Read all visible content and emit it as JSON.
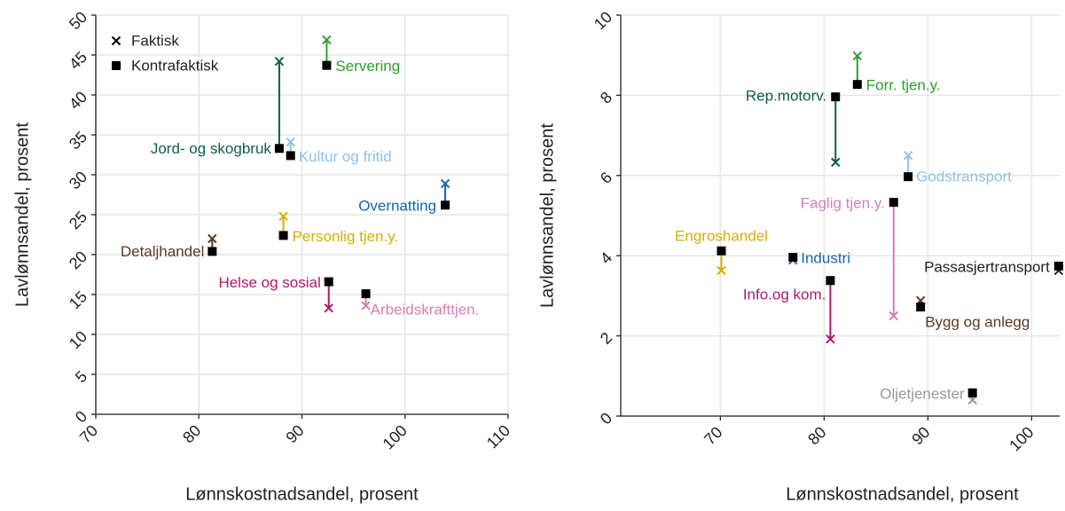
{
  "chart_data": [
    {
      "type": "scatter",
      "x_label": "Lønnskostnadsandel, prosent",
      "y_label": "Lavlønnsandel, prosent",
      "xlim": [
        70,
        110
      ],
      "ylim": [
        0,
        50
      ],
      "xticks": [
        70,
        80,
        90,
        100,
        110
      ],
      "yticks": [
        0,
        5,
        10,
        15,
        20,
        25,
        30,
        35,
        40,
        45,
        50
      ],
      "grid": true,
      "legend": [
        "Faktisk",
        "Kontrafaktisk"
      ],
      "points": [
        {
          "label": "Servering",
          "color": "#2ca02c",
          "x": 92.4,
          "faktisk": 46.9,
          "kontrafaktisk": 43.7
        },
        {
          "label": "Jord- og skogbruk",
          "color": "#0d5e4c",
          "x": 87.8,
          "faktisk": 44.2,
          "kontrafaktisk": 33.3
        },
        {
          "label": "Kultur og fritid",
          "color": "#8fc1e8",
          "x": 88.9,
          "faktisk": 34.1,
          "kontrafaktisk": 32.4
        },
        {
          "label": "Overnatting",
          "color": "#1565b0",
          "x": 103.9,
          "faktisk": 28.9,
          "kontrafaktisk": 26.2
        },
        {
          "label": "Personlig tjen.y.",
          "color": "#d4b000",
          "x": 88.2,
          "faktisk": 24.8,
          "kontrafaktisk": 22.4
        },
        {
          "label": "Detaljhandel",
          "color": "#5a3a22",
          "x": 81.3,
          "faktisk": 22.0,
          "kontrafaktisk": 20.4
        },
        {
          "label": "Helse og sosial",
          "color": "#b0176e",
          "x": 92.6,
          "faktisk": 13.3,
          "kontrafaktisk": 16.6
        },
        {
          "label": "Arbeidskrafttjen.",
          "color": "#d57fb5",
          "x": 96.2,
          "faktisk": 13.6,
          "kontrafaktisk": 15.1
        }
      ]
    },
    {
      "type": "scatter",
      "x_label": "Lønnskostnadsandel, prosent",
      "y_label": "Lavlønnsandel, prosent",
      "xlim": [
        60.4,
        102.7
      ],
      "ylim": [
        0,
        10
      ],
      "xticks": [
        70,
        80,
        90,
        100
      ],
      "yticks": [
        0,
        2,
        4,
        6,
        8,
        10
      ],
      "grid": true,
      "points": [
        {
          "label": "Forr. tjen.y.",
          "color": "#2ca02c",
          "x": 83.2,
          "faktisk": 8.98,
          "kontrafaktisk": 8.27
        },
        {
          "label": "Rep.motorv.",
          "color": "#0d5e4c",
          "x": 81.1,
          "faktisk": 6.33,
          "kontrafaktisk": 7.96
        },
        {
          "label": "Godstransport",
          "color": "#8fc1e8",
          "x": 88.1,
          "faktisk": 6.5,
          "kontrafaktisk": 5.97
        },
        {
          "label": "Faglig tjen.y.",
          "color": "#d57fb5",
          "x": 86.7,
          "faktisk": 2.5,
          "kontrafaktisk": 5.33
        },
        {
          "label": "Engroshandel",
          "color": "#d4b000",
          "x": 70.1,
          "faktisk": 3.63,
          "kontrafaktisk": 4.12
        },
        {
          "label": "Industri",
          "color": "#1565b0",
          "x": 77.0,
          "faktisk": 3.89,
          "kontrafaktisk": 3.96
        },
        {
          "label": "Info.og kom.",
          "color": "#b0176e",
          "x": 80.6,
          "faktisk": 1.92,
          "kontrafaktisk": 3.38
        },
        {
          "label": "Passasjertransport",
          "color": "#222222",
          "x": 102.6,
          "faktisk": 3.63,
          "kontrafaktisk": 3.74
        },
        {
          "label": "Bygg og anlegg",
          "color": "#5a3a22",
          "x": 89.3,
          "faktisk": 2.88,
          "kontrafaktisk": 2.72
        },
        {
          "label": "Oljetjenester",
          "color": "#999999",
          "x": 94.3,
          "faktisk": 0.4,
          "kontrafaktisk": 0.58
        }
      ]
    }
  ]
}
